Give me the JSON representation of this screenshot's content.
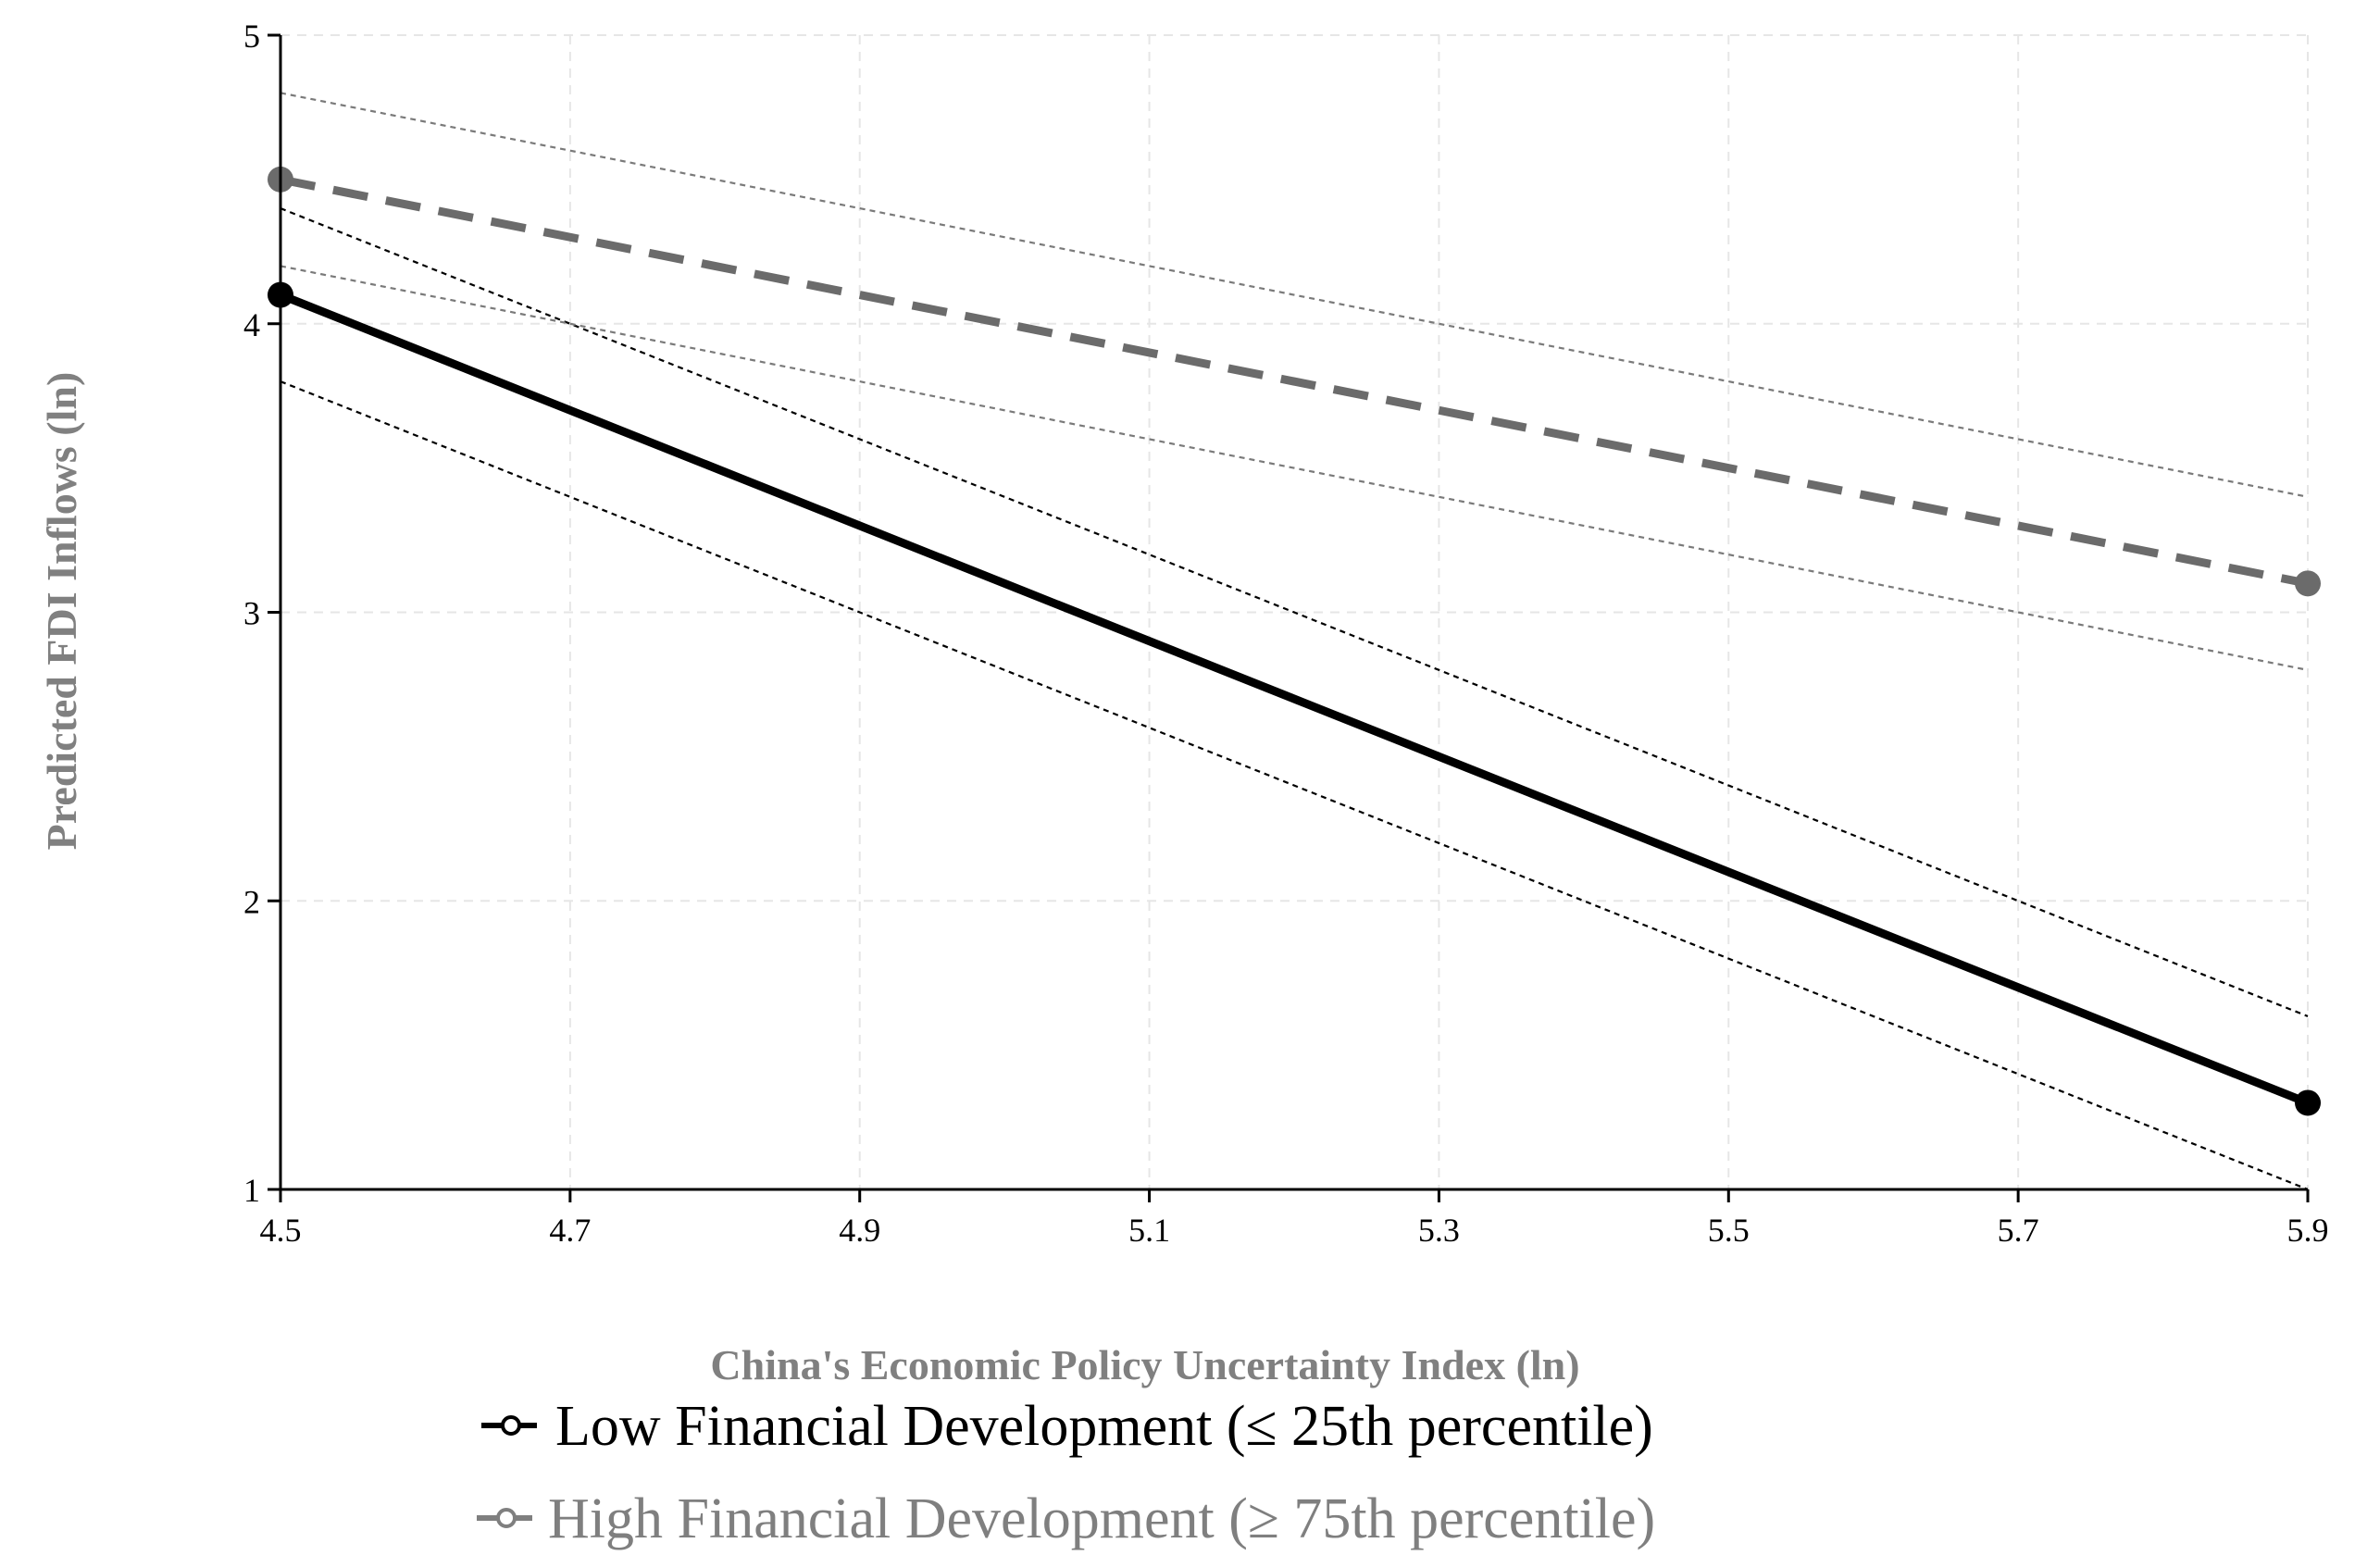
{
  "chart_data": {
    "type": "line",
    "title": "",
    "xlabel": "China's Economic Policy Uncertainty Index (ln)",
    "ylabel": "Predicted FDI Inflows (ln)",
    "xlim": [
      4.5,
      5.9
    ],
    "ylim": [
      1,
      5
    ],
    "x_ticks": [
      "4.5",
      "4.7",
      "4.9",
      "5.1",
      "5.3",
      "5.5",
      "5.7",
      "5.9"
    ],
    "y_ticks": [
      "1",
      "2",
      "3",
      "4",
      "5"
    ],
    "grid": true,
    "legend_position": "bottom",
    "series": [
      {
        "name": "Low Financial Development (≤ 25th percentile)",
        "x": [
          4.5,
          5.9
        ],
        "values": [
          4.1,
          1.3
        ],
        "ci_upper": [
          4.4,
          1.6
        ],
        "ci_lower": [
          3.8,
          1.0
        ],
        "color": "#000000",
        "line_style": "solid"
      },
      {
        "name": "High Financial Development (≥ 75th percentile)",
        "x": [
          4.5,
          5.9
        ],
        "values": [
          4.5,
          3.1
        ],
        "ci_upper": [
          4.8,
          3.4
        ],
        "ci_lower": [
          4.2,
          2.8
        ],
        "color": "#6b6b6b",
        "line_style": "dashed"
      }
    ]
  },
  "legend": {
    "items": [
      {
        "label": "Low Financial Development (≤ 25th percentile)",
        "color": "#000000"
      },
      {
        "label": "High Financial Development (≥ 75th percentile)",
        "color": "#7f7f7f"
      }
    ]
  }
}
